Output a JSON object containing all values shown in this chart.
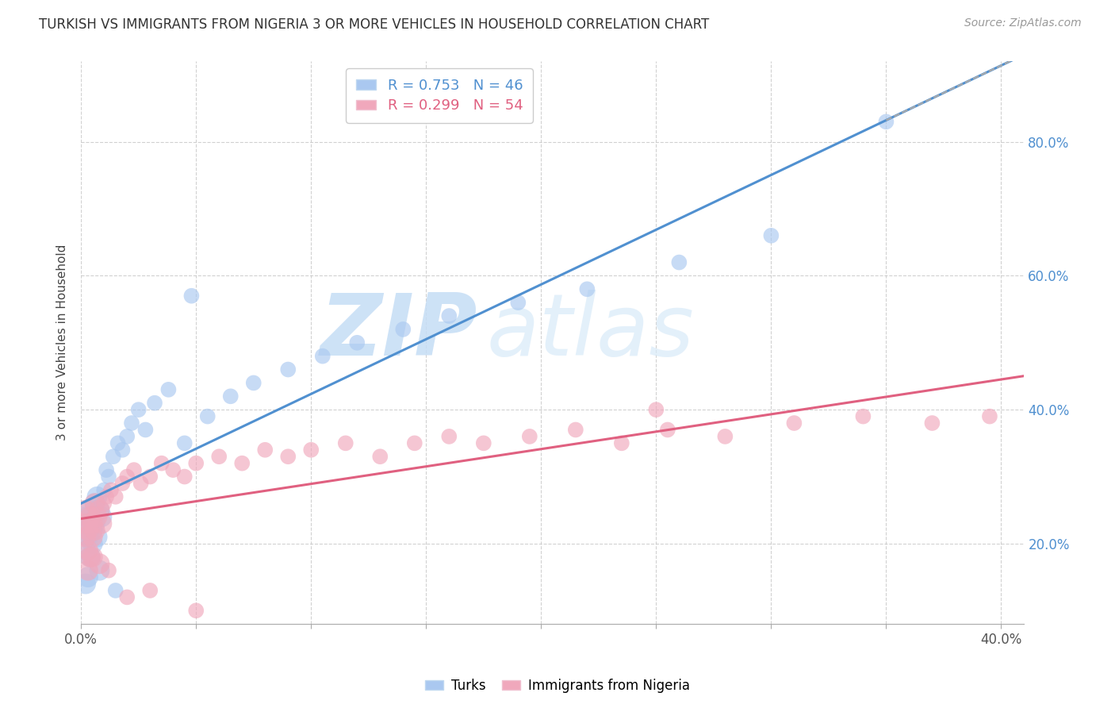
{
  "title": "TURKISH VS IMMIGRANTS FROM NIGERIA 3 OR MORE VEHICLES IN HOUSEHOLD CORRELATION CHART",
  "source": "Source: ZipAtlas.com",
  "ylabel": "3 or more Vehicles in Household",
  "turks_R": 0.753,
  "turks_N": 46,
  "nigeria_R": 0.299,
  "nigeria_N": 54,
  "blue_color": "#aac8f0",
  "pink_color": "#f0a8bc",
  "blue_line_color": "#5090d0",
  "pink_line_color": "#e06080",
  "xlim": [
    0.0,
    0.41
  ],
  "ylim": [
    0.08,
    0.92
  ],
  "xtick_vals": [
    0.0,
    0.05,
    0.1,
    0.15,
    0.2,
    0.25,
    0.3,
    0.35,
    0.4
  ],
  "xticklabels": [
    "0.0%",
    "",
    "",
    "",
    "",
    "",
    "",
    "",
    "40.0%"
  ],
  "ytick_positions": [
    0.2,
    0.4,
    0.6,
    0.8
  ],
  "ytick_labels": [
    "20.0%",
    "40.0%",
    "60.0%",
    "80.0%"
  ],
  "watermark_zip": "ZIP",
  "watermark_atlas": "atlas",
  "background_color": "#ffffff",
  "grid_color": "#cccccc",
  "turks_x": [
    0.001,
    0.002,
    0.002,
    0.003,
    0.003,
    0.004,
    0.004,
    0.005,
    0.005,
    0.006,
    0.006,
    0.007,
    0.007,
    0.008,
    0.009,
    0.01,
    0.011,
    0.012,
    0.014,
    0.016,
    0.018,
    0.02,
    0.022,
    0.025,
    0.028,
    0.032,
    0.038,
    0.045,
    0.055,
    0.065,
    0.075,
    0.09,
    0.105,
    0.12,
    0.14,
    0.16,
    0.19,
    0.22,
    0.26,
    0.3,
    0.048,
    0.015,
    0.008,
    0.003,
    0.002,
    0.35
  ],
  "turks_y": [
    0.22,
    0.24,
    0.19,
    0.23,
    0.21,
    0.25,
    0.18,
    0.22,
    0.2,
    0.26,
    0.23,
    0.27,
    0.21,
    0.25,
    0.24,
    0.28,
    0.31,
    0.3,
    0.33,
    0.35,
    0.34,
    0.36,
    0.38,
    0.4,
    0.37,
    0.41,
    0.43,
    0.35,
    0.39,
    0.42,
    0.44,
    0.46,
    0.48,
    0.5,
    0.52,
    0.54,
    0.56,
    0.58,
    0.62,
    0.66,
    0.57,
    0.13,
    0.16,
    0.15,
    0.14,
    0.83
  ],
  "nigeria_x": [
    0.001,
    0.002,
    0.002,
    0.003,
    0.003,
    0.004,
    0.004,
    0.005,
    0.005,
    0.006,
    0.006,
    0.007,
    0.008,
    0.009,
    0.01,
    0.011,
    0.013,
    0.015,
    0.018,
    0.02,
    0.023,
    0.026,
    0.03,
    0.035,
    0.04,
    0.045,
    0.05,
    0.06,
    0.07,
    0.08,
    0.09,
    0.1,
    0.115,
    0.13,
    0.145,
    0.16,
    0.175,
    0.195,
    0.215,
    0.235,
    0.255,
    0.28,
    0.31,
    0.34,
    0.37,
    0.395,
    0.003,
    0.005,
    0.008,
    0.012,
    0.02,
    0.03,
    0.05,
    0.25
  ],
  "nigeria_y": [
    0.23,
    0.21,
    0.25,
    0.22,
    0.19,
    0.24,
    0.18,
    0.23,
    0.21,
    0.26,
    0.22,
    0.24,
    0.25,
    0.23,
    0.26,
    0.27,
    0.28,
    0.27,
    0.29,
    0.3,
    0.31,
    0.29,
    0.3,
    0.32,
    0.31,
    0.3,
    0.32,
    0.33,
    0.32,
    0.34,
    0.33,
    0.34,
    0.35,
    0.33,
    0.35,
    0.36,
    0.35,
    0.36,
    0.37,
    0.35,
    0.37,
    0.36,
    0.38,
    0.39,
    0.38,
    0.39,
    0.16,
    0.18,
    0.17,
    0.16,
    0.12,
    0.13,
    0.1,
    0.4
  ]
}
